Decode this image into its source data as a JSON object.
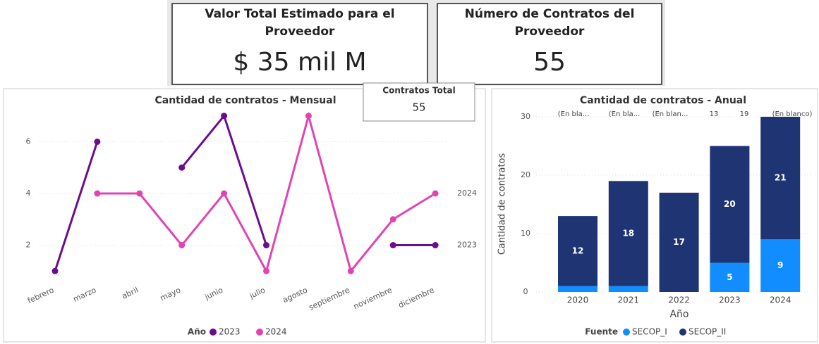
{
  "cards": [
    {
      "title_lines": [
        "Valor Total Estimado para el",
        "Proveedor"
      ],
      "value": "$ 35 mil M"
    },
    {
      "title_lines": [
        "Número de Contratos del",
        "Proveedor"
      ],
      "value": "55"
    }
  ],
  "total_card": {
    "title": "Contratos Total",
    "value": "55"
  },
  "chart_data": [
    {
      "type": "line",
      "title": "Cantidad de contratos - Mensual",
      "categories": [
        "febrero",
        "marzo",
        "abril",
        "mayo",
        "junio",
        "julio",
        "agosto",
        "septiembre",
        "noviembre",
        "diciembre"
      ],
      "series": [
        {
          "name": "2023",
          "color": "#6b0d8c",
          "values": [
            1,
            6,
            null,
            5,
            7,
            2,
            null,
            null,
            2,
            2
          ]
        },
        {
          "name": "2024",
          "color": "#e044b4",
          "values": [
            null,
            4,
            4,
            2,
            4,
            1,
            7,
            1,
            3,
            4
          ]
        }
      ],
      "ylim": [
        0.6,
        7.4
      ],
      "yticks": [
        2,
        4,
        6
      ],
      "grid": true,
      "legend_title": "Año"
    },
    {
      "type": "stacked_bar",
      "title": "Cantidad de contratos - Anual",
      "categories": [
        "2020",
        "2021",
        "2022",
        "2023",
        "2024"
      ],
      "series": [
        {
          "name": "SECOP_I",
          "color": "#118dff",
          "values": [
            1,
            1,
            0,
            5,
            9
          ],
          "value_labels": [
            null,
            null,
            null,
            "5",
            "9"
          ]
        },
        {
          "name": "SECOP_II",
          "color": "#1f3473",
          "values": [
            12,
            18,
            17,
            20,
            21
          ],
          "value_labels": [
            "12",
            "18",
            "17",
            "20",
            "21"
          ]
        }
      ],
      "annotations": [
        "(En bla...",
        "(En bla...",
        "(En blan...",
        "13",
        "19",
        "(En blanco)"
      ],
      "ylim": [
        0,
        30
      ],
      "yticks": [
        0,
        10,
        20,
        30
      ],
      "grid": true,
      "xlabel": "Año",
      "ylabel": "Cantidad de contratos",
      "legend_title": "Fuente"
    }
  ]
}
